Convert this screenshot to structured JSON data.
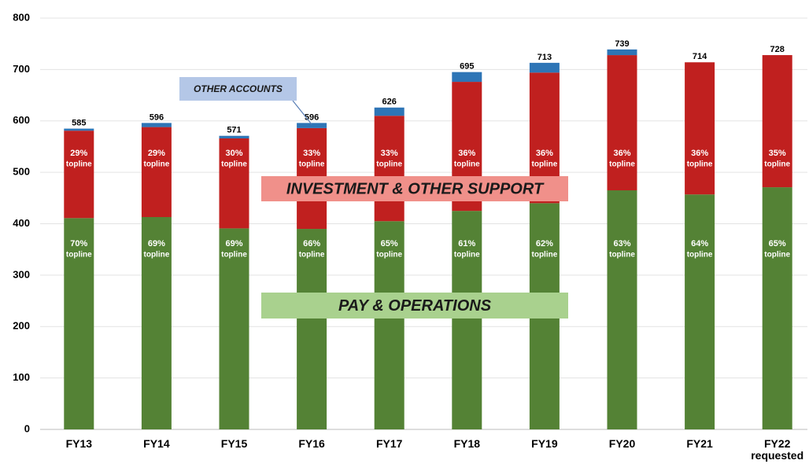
{
  "chart_data": {
    "type": "stacked_bar",
    "categories": [
      "FY13",
      "FY14",
      "FY15",
      "FY16",
      "FY17",
      "FY18",
      "FY19",
      "FY20",
      "FY21",
      "FY22 requested"
    ],
    "series": [
      {
        "name": "PAY & OPERATIONS",
        "color": "#548235",
        "values": [
          411,
          413,
          391,
          390,
          405,
          425,
          440,
          465,
          457,
          471
        ],
        "labels": [
          "70%",
          "69%",
          "69%",
          "66%",
          "65%",
          "61%",
          "62%",
          "63%",
          "64%",
          "65%"
        ]
      },
      {
        "name": "INVESTMENT & OTHER SUPPORT",
        "color": "#c0201f",
        "values": [
          170,
          175,
          175,
          196,
          205,
          251,
          254,
          263,
          257,
          257
        ],
        "labels": [
          "29%",
          "29%",
          "30%",
          "33%",
          "33%",
          "36%",
          "36%",
          "36%",
          "36%",
          "35%"
        ]
      },
      {
        "name": "OTHER ACCOUNTS",
        "color": "#2e75b6",
        "values": [
          4,
          8,
          5,
          10,
          16,
          19,
          19,
          11,
          0,
          0
        ]
      }
    ],
    "label_suffix": "topline",
    "totals": [
      585,
      596,
      571,
      596,
      626,
      695,
      713,
      739,
      714,
      728
    ],
    "ylim": [
      0,
      800
    ],
    "yticks": [
      0,
      100,
      200,
      300,
      400,
      500,
      600,
      700,
      800
    ],
    "grid": true
  }
}
